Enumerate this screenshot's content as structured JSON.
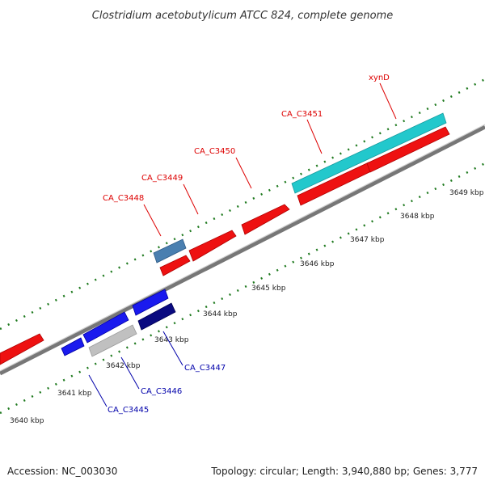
{
  "title": "Clostridium acetobutylicum ATCC 824, complete genome",
  "footer": {
    "accession": "Accession: NC_003030",
    "summary": "Topology: circular; Length: 3,940,880 bp; Genes: 3,777"
  },
  "scale_labels": [
    "3640 kbp",
    "3641 kbp",
    "3642 kbp",
    "3643 kbp",
    "3644 kbp",
    "3645 kbp",
    "3646 kbp",
    "3647 kbp",
    "3648 kbp",
    "3649 kbp"
  ],
  "gene_labels_forward": [
    "CA_C3448",
    "CA_C3449",
    "CA_C3450",
    "CA_C3451",
    "xynD"
  ],
  "gene_labels_reverse": [
    "CA_C3445",
    "CA_C3446",
    "CA_C3447"
  ],
  "colors": {
    "backbone": "#888888",
    "forward_gene": "#ee1111",
    "forward_label": "#dd0000",
    "reverse_gene": "#1a1aee",
    "reverse_label": "#0000aa",
    "highlight_cyan": "#22c8cc",
    "steel_blue": "#4a7fb0",
    "navy": "#0a0a80",
    "light_gray": "#c0c0c0",
    "tick_green": "#1f7a1f"
  }
}
